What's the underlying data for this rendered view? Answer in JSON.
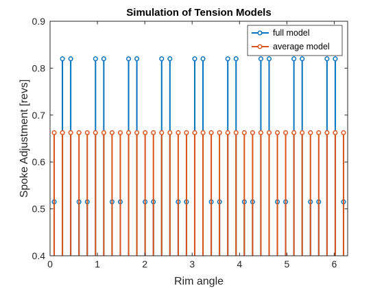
{
  "chart_data": {
    "type": "stem",
    "title": "Simulation of Tension Models",
    "xlabel": "Rim angle",
    "ylabel": "Spoke Adjustment [revs]",
    "xlim": [
      0,
      6.2832
    ],
    "ylim": [
      0.4,
      0.9
    ],
    "xticks": [
      "0",
      "1",
      "2",
      "3",
      "4",
      "5",
      "6"
    ],
    "yticks": [
      "0.4",
      "0.5",
      "0.6",
      "0.7",
      "0.8",
      "0.9"
    ],
    "legend_position": "top-right",
    "grid": false,
    "series": [
      {
        "name": "full model",
        "color": "#0072BD",
        "marker": "circle",
        "x": [
          0.0873,
          0.2618,
          0.4363,
          0.6109,
          0.7854,
          0.9599,
          1.1345,
          1.309,
          1.4835,
          1.6581,
          1.8326,
          2.0071,
          2.1817,
          2.3562,
          2.5307,
          2.7053,
          2.8798,
          3.0543,
          3.2289,
          3.4034,
          3.5779,
          3.7525,
          3.927,
          4.1015,
          4.2761,
          4.4506,
          4.6251,
          4.7997,
          4.9742,
          5.1487,
          5.3233,
          5.4978,
          5.6723,
          5.8469,
          6.0214,
          6.1959
        ],
        "y": [
          0.515,
          0.82,
          0.82,
          0.515,
          0.515,
          0.82,
          0.82,
          0.515,
          0.515,
          0.82,
          0.82,
          0.515,
          0.515,
          0.82,
          0.82,
          0.515,
          0.515,
          0.82,
          0.82,
          0.515,
          0.515,
          0.82,
          0.82,
          0.515,
          0.515,
          0.82,
          0.82,
          0.515,
          0.515,
          0.82,
          0.82,
          0.515,
          0.515,
          0.82,
          0.82,
          0.515
        ]
      },
      {
        "name": "average model",
        "color": "#D95319",
        "marker": "circle",
        "x": [
          0.0873,
          0.2618,
          0.4363,
          0.6109,
          0.7854,
          0.9599,
          1.1345,
          1.309,
          1.4835,
          1.6581,
          1.8326,
          2.0071,
          2.1817,
          2.3562,
          2.5307,
          2.7053,
          2.8798,
          3.0543,
          3.2289,
          3.4034,
          3.5779,
          3.7525,
          3.927,
          4.1015,
          4.2761,
          4.4506,
          4.6251,
          4.7997,
          4.9742,
          5.1487,
          5.3233,
          5.4978,
          5.6723,
          5.8469,
          6.0214,
          6.1959
        ],
        "y": [
          0.6625,
          0.6625,
          0.6625,
          0.6625,
          0.6625,
          0.6625,
          0.6625,
          0.6625,
          0.6625,
          0.6625,
          0.6625,
          0.6625,
          0.6625,
          0.6625,
          0.6625,
          0.6625,
          0.6625,
          0.6625,
          0.6625,
          0.6625,
          0.6625,
          0.6625,
          0.6625,
          0.6625,
          0.6625,
          0.6625,
          0.6625,
          0.6625,
          0.6625,
          0.6625,
          0.6625,
          0.6625,
          0.6625,
          0.6625,
          0.6625,
          0.6625
        ]
      }
    ]
  }
}
